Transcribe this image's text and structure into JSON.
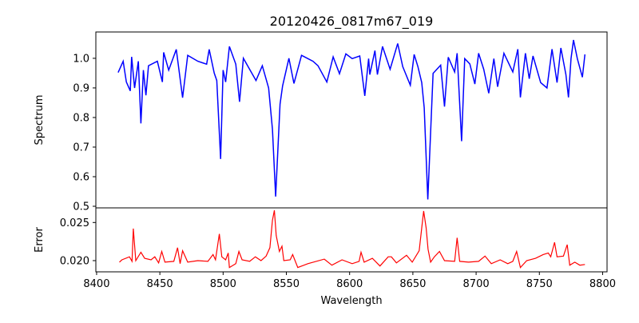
{
  "chart_data": [
    {
      "type": "line",
      "title": "20120426_0817m67_019",
      "xlabel": "",
      "ylabel": "Spectrum",
      "xlim": [
        8399.4,
        8803.5
      ],
      "ylim": [
        0.4946,
        1.089
      ],
      "yticks": [
        0.5,
        0.6,
        0.7,
        0.8,
        0.9,
        1.0
      ],
      "ytick_labels": [
        "0.5",
        "0.6",
        "0.7",
        "0.8",
        "0.9",
        "1.0"
      ],
      "grid": false,
      "series": [
        {
          "name": "spectrum",
          "color": "#0000ff",
          "x": [
            8417,
            8421,
            8423.5,
            8426.6,
            8427.7,
            8430,
            8433,
            8435,
            8437,
            8439,
            8441,
            8448,
            8452,
            8453,
            8457,
            8463,
            8468,
            8472,
            8480,
            8487,
            8489,
            8493,
            8495,
            8498,
            8500,
            8502,
            8505,
            8510,
            8513,
            8516,
            8520,
            8526,
            8531,
            8536,
            8539,
            8541.5,
            8545,
            8547,
            8552,
            8556,
            8562,
            8571,
            8575,
            8582,
            8587,
            8592,
            8597,
            8602,
            8608,
            8612,
            8615,
            8616,
            8620,
            8622,
            8626,
            8632,
            8638,
            8642,
            8648,
            8651,
            8654,
            8657,
            8659,
            8661.8,
            8665,
            8666,
            8672,
            8675,
            8678,
            8683,
            8685,
            8688.5,
            8691,
            8695,
            8699,
            8702,
            8706,
            8710,
            8714,
            8717,
            8722,
            8729,
            8733,
            8735,
            8739,
            8742,
            8745,
            8751,
            8756,
            8760,
            8764,
            8767,
            8771,
            8773,
            8775,
            8777,
            8780,
            8784,
            8786
          ],
          "y": [
            0.952,
            0.99,
            0.92,
            0.89,
            1.005,
            0.9,
            0.99,
            0.78,
            0.96,
            0.875,
            0.975,
            0.99,
            0.92,
            1.02,
            0.96,
            1.03,
            0.867,
            1.01,
            0.99,
            0.98,
            1.03,
            0.95,
            0.925,
            0.66,
            0.96,
            0.92,
            1.04,
            0.98,
            0.853,
            1.0,
            0.97,
            0.925,
            0.975,
            0.9,
            0.76,
            0.533,
            0.845,
            0.907,
            1.0,
            0.915,
            1.01,
            0.99,
            0.975,
            0.92,
            1.005,
            0.948,
            1.015,
            0.999,
            1.008,
            0.873,
            0.999,
            0.945,
            1.026,
            0.945,
            1.04,
            0.963,
            1.05,
            0.972,
            0.909,
            1.013,
            0.972,
            0.918,
            0.833,
            0.523,
            0.846,
            0.949,
            0.977,
            0.837,
            1.004,
            0.954,
            1.017,
            0.72,
            0.999,
            0.981,
            0.913,
            1.017,
            0.963,
            0.882,
            0.999,
            0.904,
            1.017,
            0.954,
            1.031,
            0.868,
            1.017,
            0.931,
            1.008,
            0.918,
            0.9,
            1.031,
            0.918,
            1.035,
            0.945,
            0.868,
            0.999,
            1.062,
            0.999,
            0.936,
            1.013
          ]
        }
      ]
    },
    {
      "type": "line",
      "title": "",
      "xlabel": "Wavelength",
      "ylabel": "Error",
      "xlim": [
        8399.4,
        8803.5
      ],
      "ylim": [
        0.01853,
        0.02692
      ],
      "xticks": [
        8400,
        8450,
        8500,
        8550,
        8600,
        8650,
        8700,
        8750,
        8800
      ],
      "xtick_labels": [
        "8400",
        "8450",
        "8500",
        "8550",
        "8600",
        "8650",
        "8700",
        "8750",
        "8800"
      ],
      "yticks": [
        0.02,
        0.025
      ],
      "ytick_labels": [
        "0.020",
        "0.025"
      ],
      "grid": false,
      "series": [
        {
          "name": "error",
          "color": "#ff0000",
          "x": [
            8418,
            8420,
            8426,
            8428,
            8429,
            8431,
            8435,
            8438,
            8443,
            8446,
            8449,
            8451.5,
            8454,
            8461,
            8464,
            8466,
            8468,
            8472,
            8480,
            8488,
            8492,
            8494,
            8497,
            8499,
            8502,
            8504,
            8505,
            8510,
            8512.5,
            8515,
            8521,
            8525.5,
            8530,
            8534,
            8537,
            8539,
            8540.5,
            8542,
            8544.5,
            8546.5,
            8548,
            8553,
            8555,
            8559,
            8567,
            8580,
            8586,
            8594,
            8602,
            8607.5,
            8609,
            8611.5,
            8618,
            8624,
            8630.5,
            8633,
            8637,
            8645,
            8649.5,
            8655,
            8657,
            8658.5,
            8660.5,
            8662,
            8664,
            8667,
            8671,
            8675,
            8683,
            8685,
            8687,
            8694,
            8702,
            8707,
            8712,
            8719,
            8725,
            8729,
            8732,
            8735,
            8740,
            8747,
            8753,
            8757,
            8759,
            8762,
            8764,
            8769,
            8772,
            8774,
            8778,
            8782,
            8786
          ],
          "y": [
            0.0198,
            0.0201,
            0.0205,
            0.0199,
            0.0242,
            0.02,
            0.0211,
            0.0203,
            0.0201,
            0.0205,
            0.0197,
            0.0212,
            0.0198,
            0.0199,
            0.0217,
            0.0196,
            0.0213,
            0.0198,
            0.02,
            0.0199,
            0.0208,
            0.0201,
            0.0235,
            0.0205,
            0.0201,
            0.021,
            0.0191,
            0.0196,
            0.0212,
            0.0201,
            0.0199,
            0.0205,
            0.02,
            0.0206,
            0.0217,
            0.0253,
            0.0266,
            0.0233,
            0.0212,
            0.0219,
            0.02,
            0.0201,
            0.0208,
            0.0191,
            0.0196,
            0.0202,
            0.0194,
            0.0201,
            0.0196,
            0.0199,
            0.0211,
            0.0198,
            0.0203,
            0.0193,
            0.0205,
            0.0205,
            0.0197,
            0.0207,
            0.0198,
            0.0213,
            0.0243,
            0.0265,
            0.0243,
            0.0215,
            0.0198,
            0.0205,
            0.0212,
            0.02,
            0.0199,
            0.023,
            0.0199,
            0.0198,
            0.0199,
            0.0206,
            0.0196,
            0.0201,
            0.0196,
            0.0199,
            0.0212,
            0.0191,
            0.02,
            0.0203,
            0.0208,
            0.021,
            0.0205,
            0.0224,
            0.0205,
            0.0206,
            0.0221,
            0.0194,
            0.0198,
            0.0194,
            0.0195
          ]
        }
      ]
    }
  ]
}
